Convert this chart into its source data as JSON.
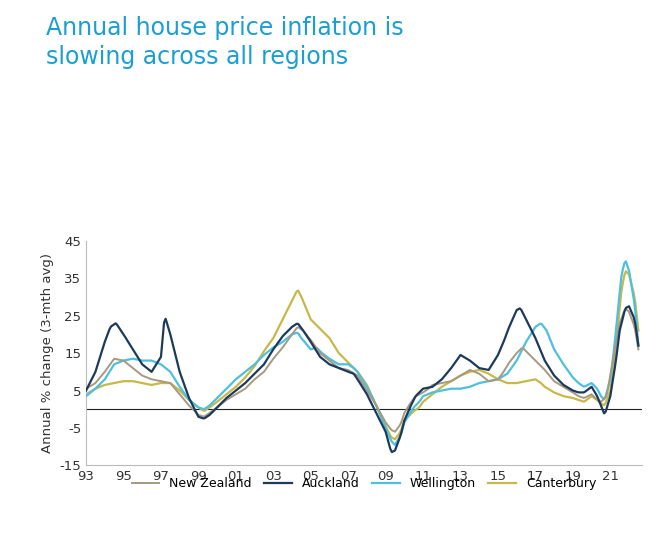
{
  "title": "Annual house price inflation is\nslowing across all regions",
  "title_color": "#1a9fd4",
  "ylabel": "Annual % change (3-mth avg)",
  "xlim": [
    1993.0,
    2022.7
  ],
  "ylim": [
    -15,
    45
  ],
  "yticks": [
    -15,
    -5,
    5,
    15,
    25,
    35,
    45
  ],
  "xtick_labels": [
    "93",
    "95",
    "97",
    "99",
    "01",
    "03",
    "05",
    "07",
    "09",
    "11",
    "13",
    "15",
    "17",
    "19",
    "21"
  ],
  "xtick_positions": [
    1993,
    1995,
    1997,
    1999,
    2001,
    2003,
    2005,
    2007,
    2009,
    2011,
    2013,
    2015,
    2017,
    2019,
    2021
  ],
  "background_color": "#ffffff",
  "zero_line_color": "#222222",
  "colors": {
    "New Zealand": "#a89880",
    "Auckland": "#1b3a5c",
    "Wellington": "#4dc0e0",
    "Canterbury": "#c8b84a"
  },
  "linewidths": {
    "New Zealand": 1.4,
    "Auckland": 1.6,
    "Wellington": 1.6,
    "Canterbury": 1.6
  }
}
